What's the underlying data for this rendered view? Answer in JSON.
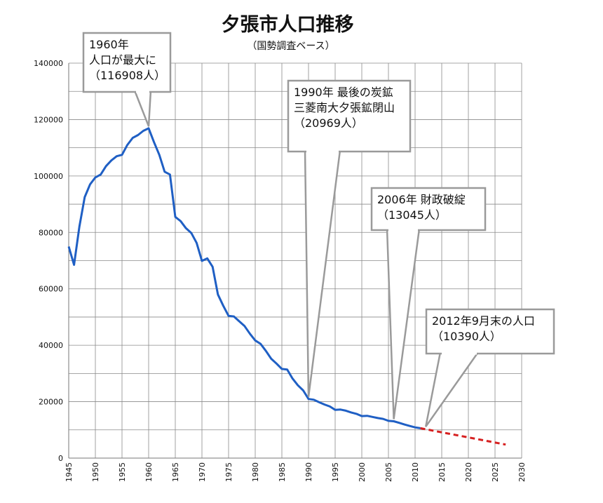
{
  "chart_data": {
    "type": "line",
    "title": "夕張市人口推移",
    "subtitle": "（国勢調査ベース）",
    "xlabel": "",
    "ylabel": "",
    "xlim": [
      1945,
      2030
    ],
    "ylim": [
      0,
      140000
    ],
    "y_ticks": [
      0,
      20000,
      40000,
      60000,
      80000,
      100000,
      120000,
      140000
    ],
    "x_ticks": [
      1945,
      1950,
      1955,
      1960,
      1965,
      1970,
      1975,
      1980,
      1985,
      1990,
      1995,
      2000,
      2005,
      2010,
      2015,
      2020,
      2025,
      2030
    ],
    "grid": true,
    "series": [
      {
        "color": "#1f5fc4",
        "style": "solid",
        "x": [
          1945,
          1946,
          1947,
          1948,
          1949,
          1950,
          1951,
          1952,
          1953,
          1954,
          1955,
          1956,
          1957,
          1958,
          1959,
          1960,
          1961,
          1962,
          1963,
          1964,
          1965,
          1966,
          1967,
          1968,
          1969,
          1970,
          1971,
          1972,
          1973,
          1974,
          1975,
          1976,
          1977,
          1978,
          1979,
          1980,
          1981,
          1982,
          1983,
          1984,
          1985,
          1986,
          1987,
          1988,
          1989,
          1990,
          1991,
          1992,
          1993,
          1994,
          1995,
          1996,
          1997,
          1998,
          1999,
          2000,
          2001,
          2002,
          2003,
          2004,
          2005,
          2006,
          2007,
          2008,
          2009,
          2010,
          2011
        ],
        "y": [
          75000,
          68500,
          82000,
          92500,
          97000,
          99500,
          100500,
          103500,
          105500,
          107000,
          107500,
          111000,
          113500,
          114500,
          116000,
          116908,
          112000,
          107500,
          101500,
          100500,
          85500,
          84000,
          81500,
          79800,
          76300,
          69900,
          70800,
          67800,
          58000,
          54000,
          50400,
          50200,
          48500,
          46800,
          44100,
          41700,
          40500,
          38000,
          35200,
          33500,
          31600,
          31400,
          28200,
          25800,
          24000,
          20969,
          20700,
          19800,
          19000,
          18300,
          17100,
          17200,
          16800,
          16200,
          15700,
          14900,
          15000,
          14600,
          14200,
          13900,
          13200,
          13045,
          12500,
          11900,
          11400,
          10900,
          10600
        ]
      },
      {
        "color": "#d62020",
        "style": "dashed",
        "x": [
          2011,
          2027
        ],
        "y": [
          10600,
          4800
        ]
      }
    ],
    "annotations": [
      {
        "lines": [
          "1960年",
          "人口が最大に",
          "（116908人）"
        ],
        "x": 1960,
        "y": 116908
      },
      {
        "lines": [
          "1990年  最後の炭鉱",
          "三菱南大夕張鉱閉山",
          "（20969人）"
        ],
        "x": 1990,
        "y": 20969
      },
      {
        "lines": [
          "2006年  財政破綻",
          "（13045人）"
        ],
        "x": 2006,
        "y": 13045
      },
      {
        "lines": [
          "2012年9月末の人口",
          "（10390人）"
        ],
        "x": 2012,
        "y": 10390
      }
    ]
  }
}
